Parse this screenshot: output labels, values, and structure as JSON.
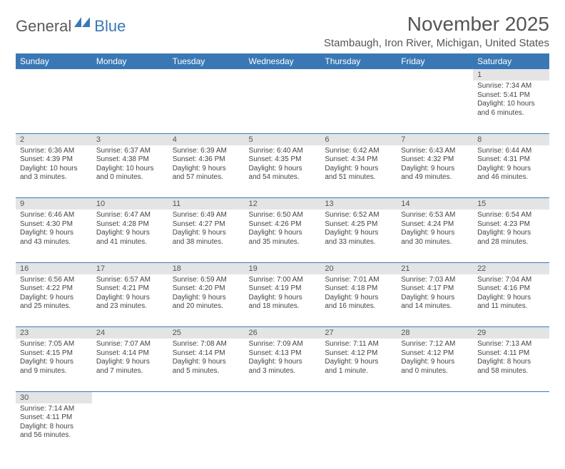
{
  "logo": {
    "text1": "General",
    "text2": "Blue"
  },
  "title": "November 2025",
  "location": "Stambaugh, Iron River, Michigan, United States",
  "colors": {
    "header_bg": "#3a78b5",
    "header_text": "#ffffff",
    "daynum_bg": "#e4e4e4",
    "text": "#444444",
    "border": "#3a78b5"
  },
  "days_of_week": [
    "Sunday",
    "Monday",
    "Tuesday",
    "Wednesday",
    "Thursday",
    "Friday",
    "Saturday"
  ],
  "weeks": [
    [
      null,
      null,
      null,
      null,
      null,
      null,
      {
        "n": "1",
        "sr": "Sunrise: 7:34 AM",
        "ss": "Sunset: 5:41 PM",
        "d1": "Daylight: 10 hours",
        "d2": "and 6 minutes."
      }
    ],
    [
      {
        "n": "2",
        "sr": "Sunrise: 6:36 AM",
        "ss": "Sunset: 4:39 PM",
        "d1": "Daylight: 10 hours",
        "d2": "and 3 minutes."
      },
      {
        "n": "3",
        "sr": "Sunrise: 6:37 AM",
        "ss": "Sunset: 4:38 PM",
        "d1": "Daylight: 10 hours",
        "d2": "and 0 minutes."
      },
      {
        "n": "4",
        "sr": "Sunrise: 6:39 AM",
        "ss": "Sunset: 4:36 PM",
        "d1": "Daylight: 9 hours",
        "d2": "and 57 minutes."
      },
      {
        "n": "5",
        "sr": "Sunrise: 6:40 AM",
        "ss": "Sunset: 4:35 PM",
        "d1": "Daylight: 9 hours",
        "d2": "and 54 minutes."
      },
      {
        "n": "6",
        "sr": "Sunrise: 6:42 AM",
        "ss": "Sunset: 4:34 PM",
        "d1": "Daylight: 9 hours",
        "d2": "and 51 minutes."
      },
      {
        "n": "7",
        "sr": "Sunrise: 6:43 AM",
        "ss": "Sunset: 4:32 PM",
        "d1": "Daylight: 9 hours",
        "d2": "and 49 minutes."
      },
      {
        "n": "8",
        "sr": "Sunrise: 6:44 AM",
        "ss": "Sunset: 4:31 PM",
        "d1": "Daylight: 9 hours",
        "d2": "and 46 minutes."
      }
    ],
    [
      {
        "n": "9",
        "sr": "Sunrise: 6:46 AM",
        "ss": "Sunset: 4:30 PM",
        "d1": "Daylight: 9 hours",
        "d2": "and 43 minutes."
      },
      {
        "n": "10",
        "sr": "Sunrise: 6:47 AM",
        "ss": "Sunset: 4:28 PM",
        "d1": "Daylight: 9 hours",
        "d2": "and 41 minutes."
      },
      {
        "n": "11",
        "sr": "Sunrise: 6:49 AM",
        "ss": "Sunset: 4:27 PM",
        "d1": "Daylight: 9 hours",
        "d2": "and 38 minutes."
      },
      {
        "n": "12",
        "sr": "Sunrise: 6:50 AM",
        "ss": "Sunset: 4:26 PM",
        "d1": "Daylight: 9 hours",
        "d2": "and 35 minutes."
      },
      {
        "n": "13",
        "sr": "Sunrise: 6:52 AM",
        "ss": "Sunset: 4:25 PM",
        "d1": "Daylight: 9 hours",
        "d2": "and 33 minutes."
      },
      {
        "n": "14",
        "sr": "Sunrise: 6:53 AM",
        "ss": "Sunset: 4:24 PM",
        "d1": "Daylight: 9 hours",
        "d2": "and 30 minutes."
      },
      {
        "n": "15",
        "sr": "Sunrise: 6:54 AM",
        "ss": "Sunset: 4:23 PM",
        "d1": "Daylight: 9 hours",
        "d2": "and 28 minutes."
      }
    ],
    [
      {
        "n": "16",
        "sr": "Sunrise: 6:56 AM",
        "ss": "Sunset: 4:22 PM",
        "d1": "Daylight: 9 hours",
        "d2": "and 25 minutes."
      },
      {
        "n": "17",
        "sr": "Sunrise: 6:57 AM",
        "ss": "Sunset: 4:21 PM",
        "d1": "Daylight: 9 hours",
        "d2": "and 23 minutes."
      },
      {
        "n": "18",
        "sr": "Sunrise: 6:59 AM",
        "ss": "Sunset: 4:20 PM",
        "d1": "Daylight: 9 hours",
        "d2": "and 20 minutes."
      },
      {
        "n": "19",
        "sr": "Sunrise: 7:00 AM",
        "ss": "Sunset: 4:19 PM",
        "d1": "Daylight: 9 hours",
        "d2": "and 18 minutes."
      },
      {
        "n": "20",
        "sr": "Sunrise: 7:01 AM",
        "ss": "Sunset: 4:18 PM",
        "d1": "Daylight: 9 hours",
        "d2": "and 16 minutes."
      },
      {
        "n": "21",
        "sr": "Sunrise: 7:03 AM",
        "ss": "Sunset: 4:17 PM",
        "d1": "Daylight: 9 hours",
        "d2": "and 14 minutes."
      },
      {
        "n": "22",
        "sr": "Sunrise: 7:04 AM",
        "ss": "Sunset: 4:16 PM",
        "d1": "Daylight: 9 hours",
        "d2": "and 11 minutes."
      }
    ],
    [
      {
        "n": "23",
        "sr": "Sunrise: 7:05 AM",
        "ss": "Sunset: 4:15 PM",
        "d1": "Daylight: 9 hours",
        "d2": "and 9 minutes."
      },
      {
        "n": "24",
        "sr": "Sunrise: 7:07 AM",
        "ss": "Sunset: 4:14 PM",
        "d1": "Daylight: 9 hours",
        "d2": "and 7 minutes."
      },
      {
        "n": "25",
        "sr": "Sunrise: 7:08 AM",
        "ss": "Sunset: 4:14 PM",
        "d1": "Daylight: 9 hours",
        "d2": "and 5 minutes."
      },
      {
        "n": "26",
        "sr": "Sunrise: 7:09 AM",
        "ss": "Sunset: 4:13 PM",
        "d1": "Daylight: 9 hours",
        "d2": "and 3 minutes."
      },
      {
        "n": "27",
        "sr": "Sunrise: 7:11 AM",
        "ss": "Sunset: 4:12 PM",
        "d1": "Daylight: 9 hours",
        "d2": "and 1 minute."
      },
      {
        "n": "28",
        "sr": "Sunrise: 7:12 AM",
        "ss": "Sunset: 4:12 PM",
        "d1": "Daylight: 9 hours",
        "d2": "and 0 minutes."
      },
      {
        "n": "29",
        "sr": "Sunrise: 7:13 AM",
        "ss": "Sunset: 4:11 PM",
        "d1": "Daylight: 8 hours",
        "d2": "and 58 minutes."
      }
    ],
    [
      {
        "n": "30",
        "sr": "Sunrise: 7:14 AM",
        "ss": "Sunset: 4:11 PM",
        "d1": "Daylight: 8 hours",
        "d2": "and 56 minutes."
      },
      null,
      null,
      null,
      null,
      null,
      null
    ]
  ]
}
